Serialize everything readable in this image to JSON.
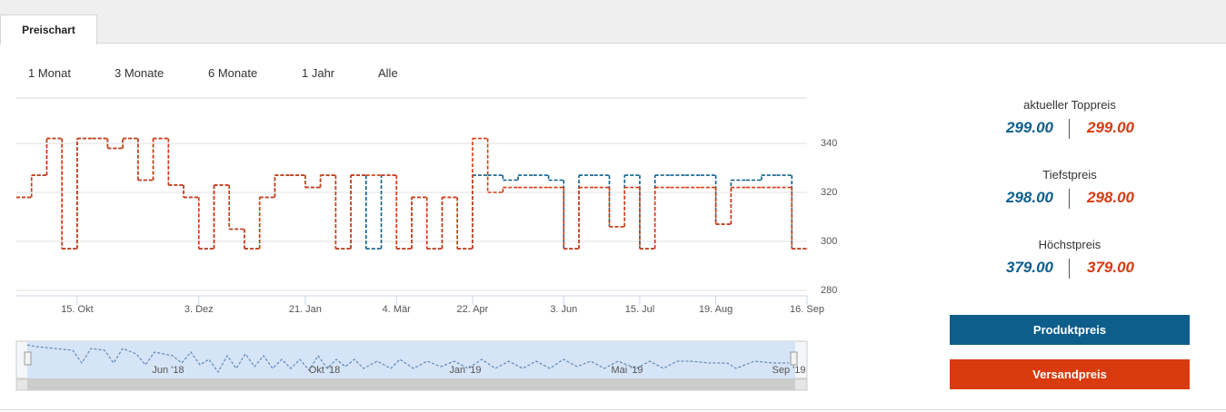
{
  "tabs": [
    "Preischart"
  ],
  "ranges": [
    "1 Monat",
    "3 Monate",
    "6 Monate",
    "1 Jahr",
    "Alle"
  ],
  "chart_data": {
    "type": "line",
    "step": true,
    "categories": [
      null,
      null,
      null,
      null,
      "15. Okt",
      null,
      null,
      null,
      null,
      null,
      null,
      null,
      "3. Dez",
      null,
      null,
      null,
      null,
      null,
      null,
      "21. Jan",
      null,
      null,
      null,
      null,
      null,
      "4. Mär",
      null,
      null,
      null,
      null,
      "22. Apr",
      null,
      null,
      null,
      null,
      null,
      "3. Jun",
      null,
      null,
      null,
      null,
      "15. Jul",
      null,
      null,
      null,
      null,
      "19. Aug",
      null,
      null,
      null,
      null,
      null,
      "16. Sep"
    ],
    "series": [
      {
        "name": "Produktpreis",
        "color": "#0e5e8c",
        "values": [
          318,
          327,
          342,
          297,
          342,
          342,
          338,
          342,
          325,
          342,
          323,
          318,
          297,
          323,
          305,
          297,
          318,
          327,
          327,
          322,
          327,
          297,
          327,
          297,
          327,
          297,
          318,
          297,
          318,
          297,
          327,
          327,
          325,
          327,
          327,
          325,
          297,
          327,
          327,
          306,
          327,
          297,
          327,
          327,
          327,
          327,
          307,
          325,
          325,
          327,
          327,
          297,
          297
        ]
      },
      {
        "name": "Versandpreis",
        "color": "#d93a0f",
        "values": [
          318,
          327,
          342,
          297,
          342,
          342,
          338,
          342,
          325,
          342,
          323,
          318,
          297,
          323,
          305,
          297,
          318,
          327,
          327,
          322,
          327,
          297,
          327,
          327,
          327,
          297,
          318,
          297,
          318,
          297,
          342,
          320,
          322,
          322,
          322,
          322,
          297,
          322,
          322,
          306,
          322,
          297,
          322,
          322,
          322,
          322,
          307,
          322,
          322,
          322,
          322,
          297,
          297
        ]
      }
    ],
    "ylim": [
      278,
      358
    ],
    "yticks": [
      280,
      300,
      320,
      340
    ],
    "grid": true,
    "navigator_labels": [
      "Jun '18",
      "Okt '18",
      "Jan '19",
      "Mai '19",
      "Sep '19"
    ]
  },
  "side_panel": {
    "stats": [
      {
        "label": "aktueller Toppreis",
        "product": "299.00",
        "shipping": "299.00"
      },
      {
        "label": "Tiefstpreis",
        "product": "298.00",
        "shipping": "298.00"
      },
      {
        "label": "Höchstpreis",
        "product": "379.00",
        "shipping": "379.00"
      }
    ]
  }
}
